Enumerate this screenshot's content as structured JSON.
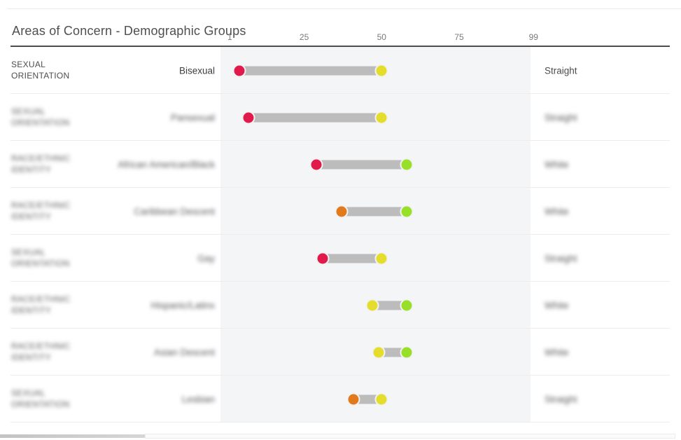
{
  "title": "Areas of Concern - Demographic Groups",
  "axis": {
    "tick_labels": [
      "1",
      "25",
      "50",
      "75",
      "99"
    ],
    "tick_values": [
      1,
      25,
      50,
      75,
      99
    ],
    "min": 1,
    "max": 99
  },
  "colors": {
    "dots": {
      "red": "#e11a4c",
      "orange": "#e2791d",
      "yellow": "#e5dd2b",
      "green": "#98df28"
    },
    "bar": "#bcbcbc",
    "plot_background": "#f4f5f7",
    "axis_line": "#4d4d4d"
  },
  "rows": [
    {
      "category": "SEXUAL ORIENTATION",
      "group": "Bisexual",
      "comparison": "Straight",
      "dot_low": {
        "value": 4,
        "color_name": "red"
      },
      "dot_high": {
        "value": 50,
        "color_name": "yellow"
      },
      "blurred": false
    },
    {
      "category": "SEXUAL ORIENTATION",
      "group": "Pansexual",
      "comparison": "Straight",
      "dot_low": {
        "value": 7,
        "color_name": "red"
      },
      "dot_high": {
        "value": 50,
        "color_name": "yellow"
      },
      "blurred": true
    },
    {
      "category": "RACE/ETHNIC IDENTITY",
      "group": "African American/Black",
      "comparison": "White",
      "dot_low": {
        "value": 29,
        "color_name": "red"
      },
      "dot_high": {
        "value": 58,
        "color_name": "green"
      },
      "blurred": true
    },
    {
      "category": "RACE/ETHNIC IDENTITY",
      "group": "Caribbean Descent",
      "comparison": "White",
      "dot_low": {
        "value": 37,
        "color_name": "orange"
      },
      "dot_high": {
        "value": 58,
        "color_name": "green"
      },
      "blurred": true
    },
    {
      "category": "SEXUAL ORIENTATION",
      "group": "Gay",
      "comparison": "Straight",
      "dot_low": {
        "value": 31,
        "color_name": "red"
      },
      "dot_high": {
        "value": 50,
        "color_name": "yellow"
      },
      "blurred": true
    },
    {
      "category": "RACE/ETHNIC IDENTITY",
      "group": "Hispanic/Latinx",
      "comparison": "White",
      "dot_low": {
        "value": 47,
        "color_name": "yellow"
      },
      "dot_high": {
        "value": 58,
        "color_name": "green"
      },
      "blurred": true
    },
    {
      "category": "RACE/ETHNIC IDENTITY",
      "group": "Asian Descent",
      "comparison": "White",
      "dot_low": {
        "value": 49,
        "color_name": "yellow"
      },
      "dot_high": {
        "value": 58,
        "color_name": "green"
      },
      "blurred": true
    },
    {
      "category": "SEXUAL ORIENTATION",
      "group": "Lesbian",
      "comparison": "Straight",
      "dot_low": {
        "value": 41,
        "color_name": "orange"
      },
      "dot_high": {
        "value": 50,
        "color_name": "yellow"
      },
      "blurred": true
    }
  ],
  "chart_data": {
    "type": "dumbbell",
    "title": "Areas of Concern - Demographic Groups",
    "xlabel": "",
    "ylabel": "",
    "xlim": [
      1,
      99
    ],
    "x_ticks": [
      1,
      25,
      50,
      75,
      99
    ],
    "grid": false,
    "legend": "none",
    "categories": [
      "Bisexual",
      "Pansexual",
      "African American/Black",
      "Caribbean Descent",
      "Gay",
      "Hispanic/Latinx",
      "Asian Descent",
      "Lesbian"
    ],
    "category_types": [
      "SEXUAL ORIENTATION",
      "SEXUAL ORIENTATION",
      "RACE/ETHNIC IDENTITY",
      "RACE/ETHNIC IDENTITY",
      "SEXUAL ORIENTATION",
      "RACE/ETHNIC IDENTITY",
      "RACE/ETHNIC IDENTITY",
      "SEXUAL ORIENTATION"
    ],
    "comparison_groups": [
      "Straight",
      "Straight",
      "White",
      "White",
      "Straight",
      "White",
      "White",
      "Straight"
    ],
    "series": [
      {
        "name": "low_end",
        "values": [
          4,
          7,
          29,
          37,
          31,
          47,
          49,
          41
        ],
        "point_colors": [
          "red",
          "red",
          "red",
          "orange",
          "red",
          "yellow",
          "yellow",
          "orange"
        ]
      },
      {
        "name": "high_end",
        "values": [
          50,
          50,
          58,
          58,
          50,
          58,
          58,
          50
        ],
        "point_colors": [
          "yellow",
          "yellow",
          "green",
          "green",
          "yellow",
          "green",
          "green",
          "yellow"
        ]
      }
    ]
  }
}
